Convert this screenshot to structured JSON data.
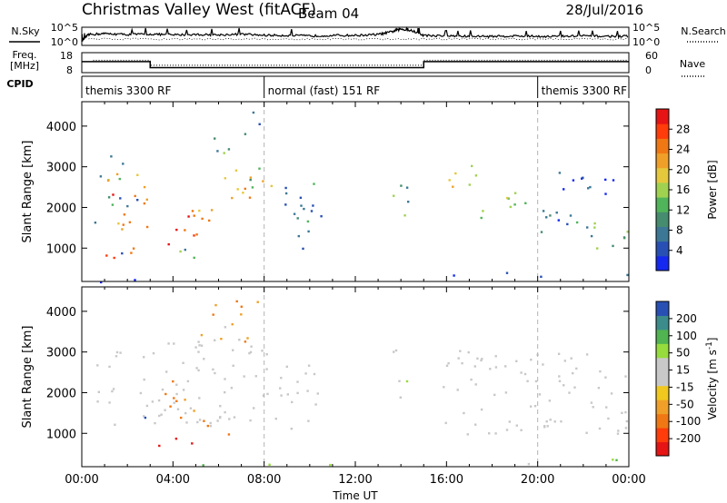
{
  "header": {
    "station": "Christmas Valley West (fitACF)",
    "beam": "Beam 04",
    "date": "28/Jul/2016"
  },
  "panels_labels": {
    "nsky": "N.Sky",
    "nsearch": "N.Search",
    "freq_line1": "Freq.",
    "freq_line2": "[MHz]",
    "nave": "Nave",
    "cpid": "CPID"
  },
  "chart_data": [
    {
      "type": "line",
      "name": "noise",
      "y_left_ticks": [
        "10^5",
        "10^0"
      ],
      "y_right_ticks": [
        "10^5",
        "10^0"
      ],
      "x_hours": [
        0,
        0.3,
        1,
        2,
        3,
        4,
        5,
        6,
        7,
        8,
        9,
        10,
        11,
        12,
        13,
        13.6,
        14,
        14.5,
        15,
        16,
        17,
        18,
        19,
        20,
        21,
        22,
        23,
        24
      ],
      "noise_frac": [
        0.25,
        0.6,
        0.65,
        0.6,
        0.62,
        0.58,
        0.6,
        0.58,
        0.62,
        0.56,
        0.55,
        0.52,
        0.55,
        0.55,
        0.6,
        0.75,
        0.9,
        0.8,
        0.55,
        0.52,
        0.5,
        0.5,
        0.52,
        0.5,
        0.5,
        0.52,
        0.5,
        0.5
      ]
    },
    {
      "type": "line",
      "name": "frequency-nave",
      "y_left_ticks": [
        "18",
        "8"
      ],
      "y_right_ticks": [
        "60",
        "0"
      ],
      "freq_steps": [
        [
          0,
          0.5,
          13.5
        ],
        [
          0.5,
          3,
          13.5
        ],
        [
          3,
          15,
          10.5
        ],
        [
          15,
          24,
          13.5
        ]
      ],
      "nave_steps": [
        [
          0.5,
          3,
          37
        ],
        [
          3,
          15,
          22
        ],
        [
          15,
          24,
          37
        ]
      ],
      "freq_ylim": [
        8,
        18
      ],
      "nave_ylim": [
        0,
        60
      ]
    },
    {
      "type": "table",
      "name": "cpid",
      "segments": [
        {
          "start": 0,
          "end": 8,
          "label": "themis 3300 RF"
        },
        {
          "start": 8,
          "end": 20,
          "label": "normal (fast) 151 RF"
        },
        {
          "start": 20,
          "end": 24,
          "label": "themis 3300 RF"
        }
      ]
    },
    {
      "type": "heatmap",
      "name": "power",
      "ylabel": "Slant Range [km]",
      "yticks": [
        1000,
        2000,
        3000,
        4000
      ],
      "ylim": [
        180,
        4600
      ],
      "xlim": [
        0,
        24
      ],
      "colorbar_label": "Power [dB]",
      "colorbar_ticks": [
        4,
        8,
        12,
        16,
        20,
        24,
        28
      ],
      "colorbar_range": [
        0,
        32
      ],
      "colors": [
        "#1428f0",
        "#2850b4",
        "#3c7896",
        "#468c6e",
        "#50b45a",
        "#a0d250",
        "#e6c83c",
        "#f0a028",
        "#f07814",
        "#ff3c0a",
        "#e61414"
      ],
      "blobs": [
        {
          "x0": 0.5,
          "x1": 2.2,
          "r0": 2700,
          "r1": 3300,
          "p": 12
        },
        {
          "x0": 1.0,
          "x1": 3.0,
          "r0": 2300,
          "r1": 2900,
          "p": 22
        },
        {
          "x0": 2.0,
          "x1": 3.2,
          "r0": 1900,
          "r1": 2400,
          "p": 24
        },
        {
          "x0": 0.8,
          "x1": 2.6,
          "r0": 700,
          "r1": 1300,
          "p": 30
        },
        {
          "x0": 1.5,
          "x1": 3.5,
          "r0": 1300,
          "r1": 1900,
          "p": 20
        },
        {
          "x0": 2.8,
          "x1": 5.0,
          "r0": 1100,
          "r1": 1700,
          "p": 26
        },
        {
          "x0": 3.5,
          "x1": 6.0,
          "r0": 1700,
          "r1": 2300,
          "p": 24
        },
        {
          "x0": 5.0,
          "x1": 7.5,
          "r0": 2100,
          "r1": 2800,
          "p": 22
        },
        {
          "x0": 6.5,
          "x1": 8.5,
          "r0": 2400,
          "r1": 3000,
          "p": 16
        },
        {
          "x0": 3.8,
          "x1": 5.5,
          "r0": 700,
          "r1": 1100,
          "p": 10
        },
        {
          "x0": 5.0,
          "x1": 6.5,
          "r0": 3200,
          "r1": 3800,
          "p": 12
        },
        {
          "x0": 6.8,
          "x1": 8.0,
          "r0": 3800,
          "r1": 4400,
          "p": 6
        },
        {
          "x0": 0.5,
          "x1": 2.5,
          "r0": 1600,
          "r1": 2300,
          "p": 8
        },
        {
          "x0": 8.5,
          "x1": 10.5,
          "r0": 1000,
          "r1": 2800,
          "p": 8
        },
        {
          "x0": 13.6,
          "x1": 14.4,
          "r0": 1800,
          "r1": 3200,
          "p": 10
        },
        {
          "x0": 15.8,
          "x1": 17.5,
          "r0": 2300,
          "r1": 3100,
          "p": 18
        },
        {
          "x0": 17.0,
          "x1": 19.5,
          "r0": 1700,
          "r1": 2400,
          "p": 14
        },
        {
          "x0": 19.0,
          "x1": 22.5,
          "r0": 1400,
          "r1": 2000,
          "p": 10
        },
        {
          "x0": 22.0,
          "x1": 24.0,
          "r0": 1000,
          "r1": 1900,
          "p": 12
        },
        {
          "x0": 20.5,
          "x1": 23.5,
          "r0": 2200,
          "r1": 2900,
          "p": 4
        },
        {
          "x0": 0.3,
          "x1": 24.0,
          "r0": 180,
          "r1": 420,
          "p": 6
        }
      ]
    },
    {
      "type": "heatmap",
      "name": "velocity",
      "ylabel": "Slant Range [km]",
      "xlabel": "Time UT",
      "xticks": [
        "00:00",
        "04:00",
        "08:00",
        "12:00",
        "16:00",
        "20:00",
        "00:00"
      ],
      "yticks": [
        1000,
        2000,
        3000,
        4000
      ],
      "ylim": [
        180,
        4600
      ],
      "xlim": [
        0,
        24
      ],
      "colorbar_label_main": "Velocity [m s",
      "colorbar_label_sup": "-1",
      "colorbar_label_end": "]",
      "colorbar_ticks": [
        "-200",
        "-100",
        "-50",
        "-15",
        "15",
        "50",
        "100",
        "200"
      ],
      "colors": [
        "#e61414",
        "#ff3c0a",
        "#f07814",
        "#f0a028",
        "#f0c81e",
        "#c8c8c8",
        "#c8c8c8",
        "#96dc3c",
        "#50b450",
        "#3c8c8c",
        "#2850b4",
        "#1428c8"
      ],
      "blobs": [
        {
          "x0": 0.5,
          "x1": 8.5,
          "r0": 1200,
          "r1": 3300,
          "v": 0
        },
        {
          "x0": 3.5,
          "x1": 5.0,
          "r0": 1300,
          "r1": 2600,
          "v": -40
        },
        {
          "x0": 2.8,
          "x1": 4.8,
          "r0": 600,
          "r1": 900,
          "v": -180
        },
        {
          "x0": 5.0,
          "x1": 6.5,
          "r0": 1000,
          "r1": 1500,
          "v": -80
        },
        {
          "x0": 5.0,
          "x1": 7.8,
          "r0": 3200,
          "r1": 4400,
          "v": -30
        },
        {
          "x0": 8.5,
          "x1": 10.5,
          "r0": 1000,
          "r1": 2800,
          "v": 0
        },
        {
          "x0": 13.6,
          "x1": 14.4,
          "r0": 1800,
          "r1": 3200,
          "v": 20
        },
        {
          "x0": 15.8,
          "x1": 24.0,
          "r0": 1000,
          "r1": 3100,
          "v": 0
        },
        {
          "x0": 0.3,
          "x1": 24.0,
          "r0": 180,
          "r1": 420,
          "v": 40
        }
      ]
    }
  ]
}
